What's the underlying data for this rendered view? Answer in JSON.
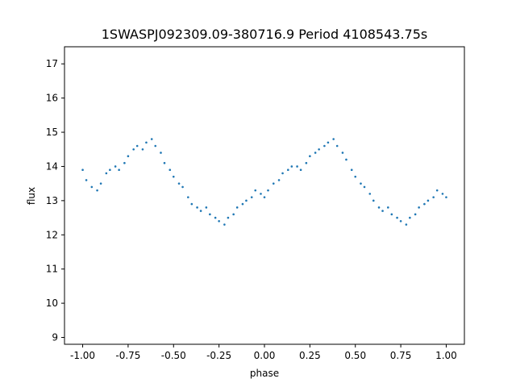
{
  "chart_data": {
    "type": "scatter",
    "title": "1SWASPJ092309.09-380716.9 Period 4108543.75s",
    "xlabel": "phase",
    "ylabel": "flux",
    "xlim": [
      -1.1,
      1.1
    ],
    "ylim": [
      8.8,
      17.5
    ],
    "x_ticks": [
      "-1.00",
      "-0.75",
      "-0.50",
      "-0.25",
      "0.00",
      "0.25",
      "0.50",
      "0.75",
      "1.00"
    ],
    "y_ticks": [
      "9",
      "10",
      "11",
      "12",
      "13",
      "14",
      "15",
      "16",
      "17"
    ],
    "grid": false,
    "marker_color": "#1f77b4",
    "series": [
      {
        "name": "",
        "x": [
          -1.0,
          -0.98,
          -0.95,
          -0.92,
          -0.9,
          -0.87,
          -0.85,
          -0.82,
          -0.8,
          -0.77,
          -0.75,
          -0.72,
          -0.7,
          -0.67,
          -0.65,
          -0.62,
          -0.6,
          -0.57,
          -0.55,
          -0.52,
          -0.5,
          -0.47,
          -0.45,
          -0.42,
          -0.4,
          -0.37,
          -0.35,
          -0.32,
          -0.3,
          -0.27,
          -0.25,
          -0.22,
          -0.2,
          -0.17,
          -0.15,
          -0.12,
          -0.1,
          -0.07,
          -0.05,
          -0.02,
          0.0,
          0.02,
          0.05,
          0.08,
          0.1,
          0.13,
          0.15,
          0.18,
          0.2,
          0.23,
          0.25,
          0.28,
          0.3,
          0.33,
          0.35,
          0.38,
          0.4,
          0.43,
          0.45,
          0.48,
          0.5,
          0.53,
          0.55,
          0.58,
          0.6,
          0.63,
          0.65,
          0.68,
          0.7,
          0.73,
          0.75,
          0.78,
          0.8,
          0.83,
          0.85,
          0.88,
          0.9,
          0.93,
          0.95,
          0.98,
          1.0
        ],
        "y": [
          13.9,
          13.6,
          13.4,
          13.3,
          13.5,
          13.8,
          13.9,
          14.0,
          13.9,
          14.1,
          14.3,
          14.5,
          14.6,
          14.5,
          14.7,
          14.8,
          14.6,
          14.4,
          14.1,
          13.9,
          13.7,
          13.5,
          13.4,
          13.1,
          12.9,
          12.8,
          12.7,
          12.8,
          12.6,
          12.5,
          12.4,
          12.3,
          12.5,
          12.6,
          12.8,
          12.9,
          13.0,
          13.1,
          13.3,
          13.2,
          13.1,
          13.3,
          13.5,
          13.6,
          13.8,
          13.9,
          14.0,
          14.0,
          13.9,
          14.1,
          14.3,
          14.4,
          14.5,
          14.6,
          14.7,
          14.8,
          14.6,
          14.4,
          14.2,
          13.9,
          13.7,
          13.5,
          13.4,
          13.2,
          13.0,
          12.8,
          12.7,
          12.8,
          12.6,
          12.5,
          12.4,
          12.3,
          12.5,
          12.6,
          12.8,
          12.9,
          13.0,
          13.1,
          13.3,
          13.2,
          13.1
        ]
      }
    ]
  }
}
